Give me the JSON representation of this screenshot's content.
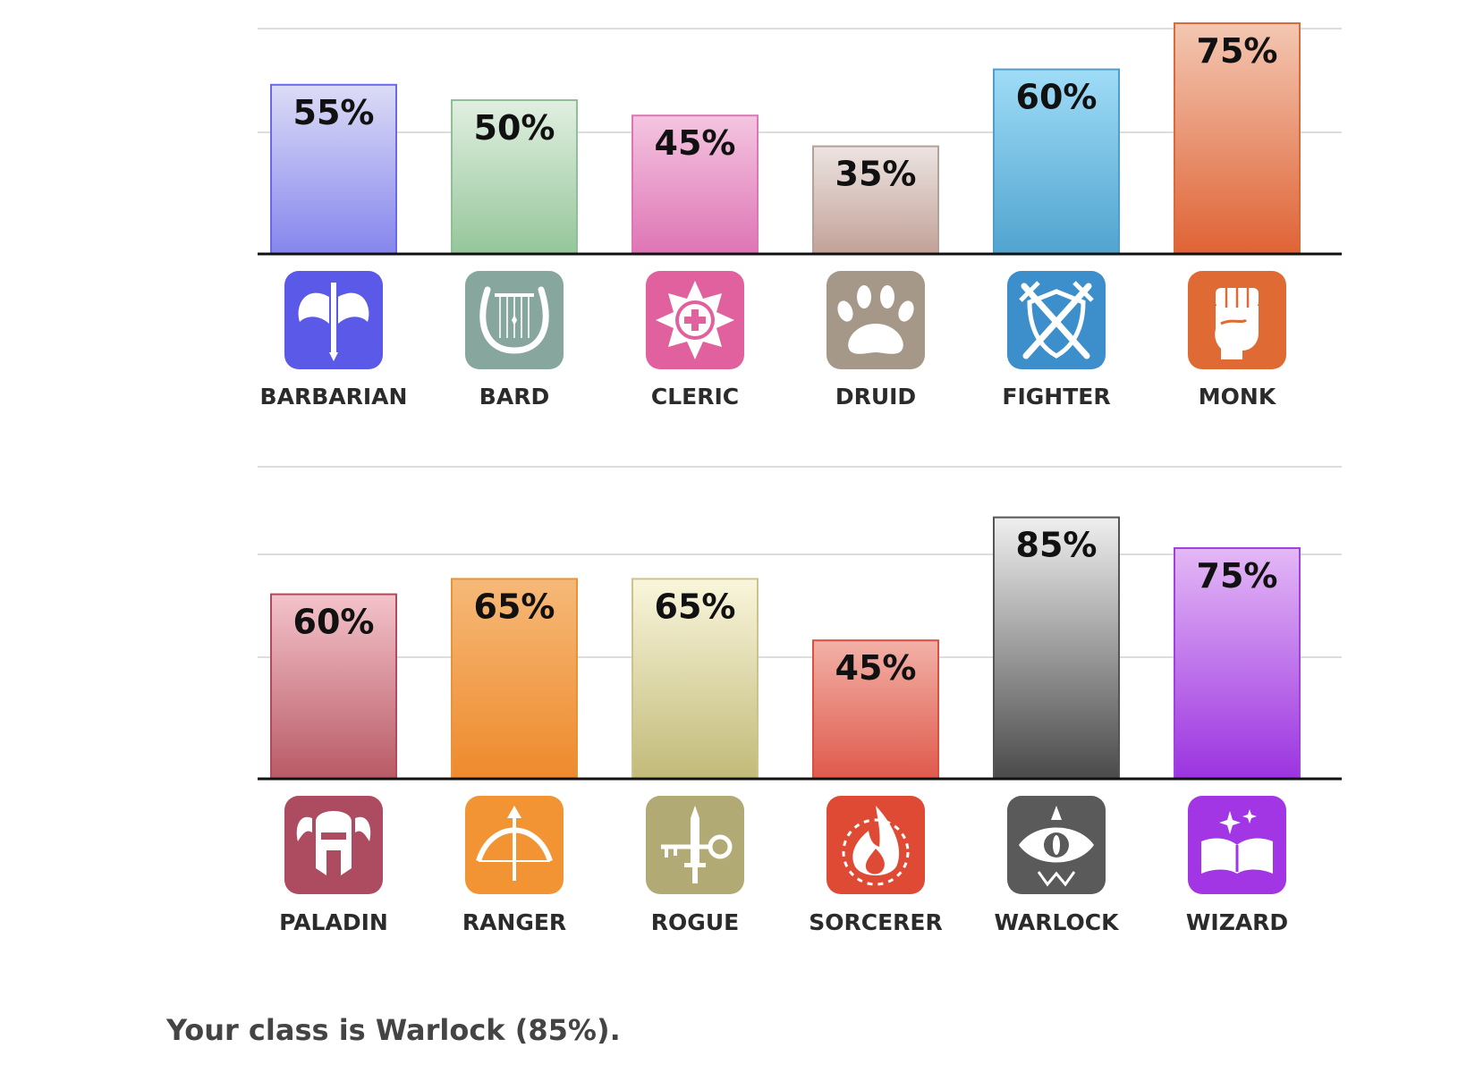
{
  "chart_data": [
    {
      "type": "bar",
      "categories": [
        "BARBARIAN",
        "BARD",
        "CLERIC",
        "DRUID",
        "FIGHTER",
        "MONK"
      ],
      "values": [
        55,
        50,
        45,
        35,
        60,
        75
      ],
      "value_labels": [
        "55%",
        "50%",
        "45%",
        "35%",
        "60%",
        "75%"
      ],
      "colors": [
        [
          "#dcdcf6",
          "#8585ee"
        ],
        [
          "#e1efe1",
          "#95c69a"
        ],
        [
          "#f4c5e0",
          "#de75b5"
        ],
        [
          "#ece4e1",
          "#c2a198"
        ],
        [
          "#9fdcf7",
          "#50a4cf"
        ],
        [
          "#f3c7b2",
          "#df6335"
        ]
      ],
      "border_colors": [
        "#6a6ae6",
        "#8fbe97",
        "#de75b5",
        "#b4a199",
        "#4f9fcc",
        "#d96a3a"
      ],
      "icons": [
        "axe-icon",
        "lyre-icon",
        "holy-symbol-icon",
        "paw-icon",
        "crossed-swords-shield-icon",
        "fist-icon"
      ],
      "icon_colors": [
        "#5a59e8",
        "#87a69e",
        "#e0619d",
        "#a59889",
        "#3c8fca",
        "#e06a33"
      ],
      "ylim": [
        0,
        100
      ],
      "grid": true,
      "title": "",
      "xlabel": "",
      "ylabel": ""
    },
    {
      "type": "bar",
      "categories": [
        "PALADIN",
        "RANGER",
        "ROGUE",
        "SORCERER",
        "WARLOCK",
        "WIZARD"
      ],
      "values": [
        60,
        65,
        65,
        45,
        85,
        75
      ],
      "value_labels": [
        "60%",
        "65%",
        "65%",
        "45%",
        "85%",
        "75%"
      ],
      "colors": [
        [
          "#f4c3cb",
          "#b85a65"
        ],
        [
          "#f6b978",
          "#ee8a2c"
        ],
        [
          "#f9f6dc",
          "#c2ba78"
        ],
        [
          "#f2b1a7",
          "#df5a4c"
        ],
        [
          "#efefef",
          "#4a4a4a"
        ],
        [
          "#e4b8f6",
          "#9b33e0"
        ]
      ],
      "border_colors": [
        "#b24a5c",
        "#e8923a",
        "#cbc38a",
        "#d9503f",
        "#555555",
        "#a042e0"
      ],
      "icons": [
        "winged-helmet-icon",
        "bow-arrow-icon",
        "dagger-key-icon",
        "flame-icon",
        "eye-icon",
        "spellbook-icon"
      ],
      "icon_colors": [
        "#ad4c61",
        "#f39434",
        "#b1aa74",
        "#df4a35",
        "#5a5a5a",
        "#a236e4"
      ],
      "ylim": [
        0,
        100
      ],
      "grid": true,
      "title": "",
      "xlabel": "",
      "ylabel": ""
    }
  ],
  "result": {
    "text": "Your class is Warlock (85%)."
  }
}
